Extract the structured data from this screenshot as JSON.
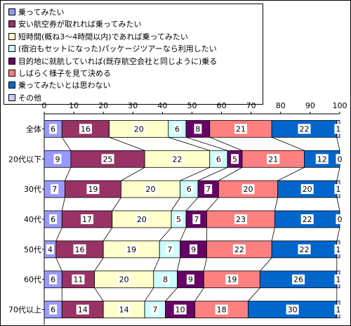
{
  "chart_data": {
    "type": "bar",
    "orientation": "horizontal",
    "stacked": true,
    "xlim": [
      0,
      100
    ],
    "xticks": [
      "0",
      "10",
      "20",
      "30",
      "40",
      "50",
      "60",
      "70",
      "80",
      "90",
      "100"
    ],
    "categories": [
      "全体",
      "20代以下",
      "30代",
      "40代",
      "50代",
      "60代",
      "70代以上"
    ],
    "series": [
      {
        "name": "乗ってみたい",
        "color": "#9999ff",
        "values": [
          6,
          9,
          7,
          6,
          4,
          6,
          6
        ]
      },
      {
        "name": "安い航空券が取れれば乗ってみたい",
        "color": "#993366",
        "values": [
          16,
          25,
          19,
          17,
          16,
          11,
          14
        ]
      },
      {
        "name": "短時間(概ね3～4時間以内)であれば乗ってみたい",
        "color": "#ffffcc",
        "values": [
          20,
          22,
          20,
          20,
          19,
          20,
          14
        ]
      },
      {
        "name": "(宿泊もセットになった)パッケージツアーなら利用したい",
        "color": "#ccffff",
        "values": [
          6,
          6,
          6,
          5,
          7,
          8,
          7
        ]
      },
      {
        "name": "目的地に就航していれば(既存航空会社と同じように)乗る",
        "color": "#660066",
        "values": [
          8,
          5,
          7,
          7,
          9,
          9,
          10
        ]
      },
      {
        "name": "しばらく様子を見て決める",
        "color": "#ff8080",
        "values": [
          21,
          21,
          20,
          23,
          22,
          19,
          18
        ]
      },
      {
        "name": "乗ってみたいとは思わない",
        "color": "#0066cc",
        "values": [
          22,
          12,
          20,
          22,
          22,
          26,
          30
        ]
      },
      {
        "name": "その他",
        "color": "#ccccff",
        "values": [
          1,
          0,
          1,
          0,
          1,
          1,
          1
        ]
      }
    ],
    "legend_position": "top-left",
    "grid": false
  }
}
